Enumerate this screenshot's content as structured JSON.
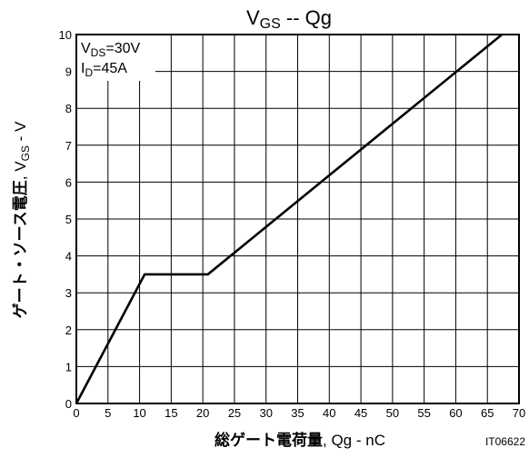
{
  "chart_data": {
    "type": "line",
    "title": {
      "main": "V",
      "sub": "GS",
      "rest": " -- Qg"
    },
    "annotation": {
      "line1": {
        "main": "V",
        "sub": "DS",
        "rest": "=30V"
      },
      "line2": {
        "main": "I",
        "sub": "D",
        "rest": "=45A"
      }
    },
    "xlabel": {
      "jp": "総ゲート電荷量",
      "rest": ", Qg - nC"
    },
    "ylabel": {
      "jp": "ゲート・ソース電圧",
      "rest_main": ", V",
      "rest_sub": "GS",
      "rest_tail": " - V"
    },
    "code": "IT06622",
    "xlim": [
      0,
      70
    ],
    "ylim": [
      0,
      10
    ],
    "x_ticks": [
      0,
      5,
      10,
      15,
      20,
      25,
      30,
      35,
      40,
      45,
      50,
      55,
      60,
      65,
      70
    ],
    "y_ticks": [
      0,
      1,
      2,
      3,
      4,
      5,
      6,
      7,
      8,
      9,
      10
    ],
    "grid": true,
    "series": [
      {
        "color": "#000000",
        "points": [
          {
            "x": 0,
            "y": 0
          },
          {
            "x": 10.8,
            "y": 3.5
          },
          {
            "x": 20.8,
            "y": 3.5
          },
          {
            "x": 67.3,
            "y": 10.0
          }
        ]
      }
    ]
  }
}
